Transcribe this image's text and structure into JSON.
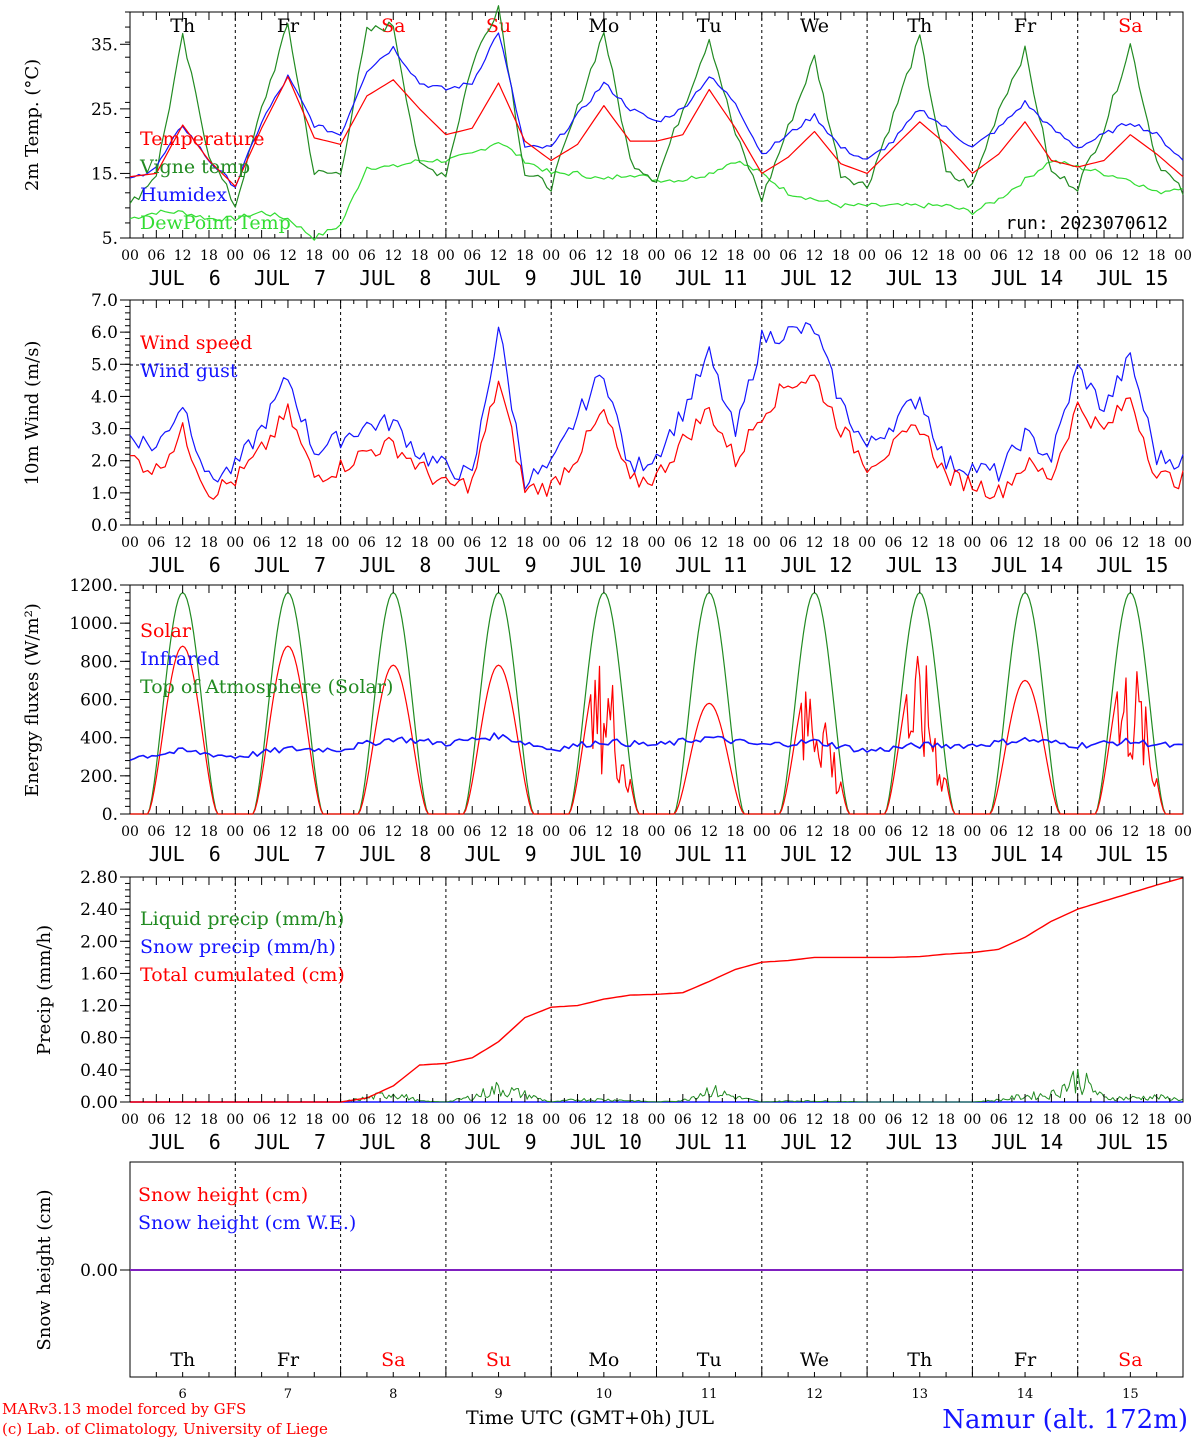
{
  "run": "run: 2023070612",
  "footer": {
    "credit1": "MARv3.13 model forced by GFS",
    "credit2": "(c) Lab. of Climatology, University of Liege",
    "xaxis_title": "Time UTC (GMT+0h) JUL",
    "station": "Namur (alt. 172m)"
  },
  "days": [
    {
      "num": "6",
      "date": "JUL  6",
      "dow": "Th"
    },
    {
      "num": "7",
      "date": "JUL  7",
      "dow": "Fr"
    },
    {
      "num": "8",
      "date": "JUL  8",
      "dow": "Sa"
    },
    {
      "num": "9",
      "date": "JUL  9",
      "dow": "Su"
    },
    {
      "num": "10",
      "date": "JUL 10",
      "dow": "Mo"
    },
    {
      "num": "11",
      "date": "JUL 11",
      "dow": "Tu"
    },
    {
      "num": "12",
      "date": "JUL 12",
      "dow": "We"
    },
    {
      "num": "13",
      "date": "JUL 13",
      "dow": "Th"
    },
    {
      "num": "14",
      "date": "JUL 14",
      "dow": "Fr"
    },
    {
      "num": "15",
      "date": "JUL 15",
      "dow": "Sa"
    }
  ],
  "hour_ticks": [
    "00",
    "06",
    "12",
    "18"
  ],
  "colors": {
    "red": "#ff0000",
    "green": "#228b22",
    "blue": "#1414ff",
    "lime": "#33dd33",
    "weekend": "#ff0000",
    "purple": "#7f1fbf"
  },
  "chart_data": [
    {
      "type": "line",
      "ylabel": "2m Temp. (°C)",
      "ylim": [
        5,
        40
      ],
      "yticks": [
        "5.",
        "15.",
        "25.",
        "35."
      ],
      "x_unit": "hours since JUL 6 00 UTC",
      "series": [
        {
          "name": "Temperature",
          "color": "red",
          "x": [
            0,
            6,
            12,
            18,
            24,
            30,
            36,
            42,
            48,
            54,
            60,
            66,
            72,
            78,
            84,
            90,
            96,
            102,
            108,
            114,
            120,
            126,
            132,
            138,
            144,
            150,
            156,
            162,
            168,
            174,
            180,
            186,
            192,
            198,
            204,
            210,
            216,
            222,
            228,
            234,
            240
          ],
          "values": [
            14.5,
            15,
            22.5,
            17,
            13,
            22,
            30,
            20.5,
            19.5,
            27,
            29.5,
            25,
            21,
            22,
            29,
            20,
            17,
            19.5,
            25.5,
            20,
            20,
            21,
            28,
            22,
            15,
            17.5,
            21.5,
            16.5,
            15,
            19,
            23,
            19.5,
            15,
            18,
            23,
            17,
            16,
            17,
            21,
            18,
            14.5
          ]
        },
        {
          "name": "Vigne temp",
          "color": "green",
          "x": [
            0,
            6,
            12,
            18,
            24,
            30,
            36,
            42,
            48,
            54,
            60,
            66,
            72,
            78,
            84,
            90,
            96,
            102,
            108,
            114,
            120,
            126,
            132,
            138,
            144,
            150,
            156,
            162,
            168,
            174,
            180,
            186,
            192,
            198,
            204,
            210,
            216,
            222,
            228,
            234,
            240
          ],
          "values": [
            10,
            15,
            36,
            18,
            10,
            25,
            38,
            15,
            15,
            37,
            38,
            16,
            15,
            32,
            41,
            15,
            13,
            25,
            37,
            17,
            14,
            25,
            36,
            21,
            11,
            22,
            33,
            15,
            13,
            24,
            36,
            15,
            13,
            25,
            34,
            15,
            13,
            22,
            35,
            17,
            12
          ]
        },
        {
          "name": "Humidex",
          "color": "blue",
          "x": [
            0,
            6,
            12,
            18,
            24,
            30,
            36,
            42,
            48,
            54,
            60,
            66,
            72,
            78,
            84,
            90,
            96,
            102,
            108,
            114,
            120,
            126,
            132,
            138,
            144,
            150,
            156,
            162,
            168,
            174,
            180,
            186,
            192,
            198,
            204,
            210,
            216,
            222,
            228,
            234,
            240
          ],
          "values": [
            14,
            16,
            22.5,
            17,
            13,
            23,
            30,
            22.5,
            21,
            31,
            34.5,
            29,
            28,
            29,
            37,
            19,
            19,
            24,
            29,
            25,
            23,
            25,
            30,
            26,
            18,
            21,
            24,
            19,
            17,
            20,
            25,
            22,
            19,
            22,
            26,
            22,
            19,
            21,
            23,
            21,
            17
          ]
        },
        {
          "name": "DewPoint Temp",
          "color": "lime",
          "x": [
            0,
            6,
            12,
            18,
            24,
            30,
            36,
            42,
            48,
            54,
            60,
            66,
            72,
            78,
            84,
            90,
            96,
            102,
            108,
            114,
            120,
            126,
            132,
            138,
            144,
            150,
            156,
            162,
            168,
            174,
            180,
            186,
            192,
            198,
            204,
            210,
            216,
            222,
            228,
            234,
            240
          ],
          "values": [
            8,
            9,
            9,
            8,
            8,
            9,
            8,
            5,
            7,
            16,
            16,
            17,
            17,
            18,
            20,
            17,
            15,
            15,
            14,
            15,
            14,
            14,
            15,
            17,
            15,
            12,
            11,
            10,
            10,
            10,
            10,
            10,
            9,
            11,
            14,
            17,
            16,
            15,
            14,
            12,
            13
          ]
        }
      ]
    },
    {
      "type": "line",
      "ylabel": "10m Wind (m/s)",
      "ylim": [
        0,
        7
      ],
      "yticks": [
        "0.0",
        "1.0",
        "2.0",
        "3.0",
        "4.0",
        "5.0",
        "6.0",
        "7.0"
      ],
      "series": [
        {
          "name": "Wind speed",
          "color": "red",
          "x": [
            0,
            6,
            12,
            18,
            24,
            30,
            36,
            42,
            48,
            54,
            60,
            66,
            72,
            78,
            84,
            90,
            96,
            102,
            108,
            114,
            120,
            126,
            132,
            138,
            144,
            150,
            156,
            162,
            168,
            174,
            180,
            186,
            192,
            198,
            204,
            210,
            216,
            222,
            228,
            234,
            240
          ],
          "values": [
            2.1,
            1.7,
            2.9,
            1.0,
            1.4,
            2.3,
            3.5,
            1.5,
            1.8,
            2.3,
            2.5,
            1.8,
            1.2,
            1.3,
            4.5,
            1.1,
            1.2,
            2.2,
            3.5,
            1.3,
            1.5,
            2.6,
            3.6,
            2.0,
            3.5,
            4.4,
            4.6,
            3.0,
            1.9,
            2.4,
            3.1,
            1.5,
            1.3,
            1.0,
            1.9,
            1.5,
            3.7,
            2.9,
            4.0,
            1.5,
            1.4
          ]
        },
        {
          "name": "Wind gust",
          "color": "blue",
          "x": [
            0,
            6,
            12,
            18,
            24,
            30,
            36,
            42,
            48,
            54,
            60,
            66,
            72,
            78,
            84,
            90,
            96,
            102,
            108,
            114,
            120,
            126,
            132,
            138,
            144,
            150,
            156,
            162,
            168,
            174,
            180,
            186,
            192,
            198,
            204,
            210,
            216,
            222,
            228,
            234,
            240
          ],
          "values": [
            2.8,
            2.4,
            3.8,
            1.4,
            1.8,
            3.0,
            4.6,
            2.3,
            2.7,
            3.1,
            3.2,
            2.2,
            1.8,
            1.5,
            6.2,
            1.4,
            1.8,
            3.4,
            4.8,
            1.7,
            2.2,
            3.5,
            5.3,
            2.8,
            5.8,
            6.0,
            6.1,
            3.8,
            2.4,
            3.2,
            4.0,
            1.9,
            1.8,
            1.6,
            2.8,
            2.1,
            4.9,
            3.6,
            5.2,
            2.1,
            2.0
          ]
        }
      ]
    },
    {
      "type": "line",
      "ylabel": "Energy fluxes (W/m²)",
      "ylim": [
        0,
        1200
      ],
      "yticks": [
        "0.",
        "200.",
        "400.",
        "600.",
        "800.",
        "1000.",
        "1200."
      ],
      "series": [
        {
          "name": "Solar",
          "color": "red",
          "daily_peak": [
            880,
            880,
            780,
            780,
            840,
            580,
            780,
            840,
            700,
            860
          ]
        },
        {
          "name": "Infrared",
          "color": "blue",
          "x": [
            0,
            12,
            24,
            36,
            48,
            60,
            72,
            84,
            96,
            108,
            120,
            132,
            144,
            156,
            168,
            180,
            192,
            204,
            216,
            228,
            240
          ],
          "values": [
            295,
            330,
            300,
            340,
            340,
            395,
            370,
            410,
            340,
            380,
            360,
            400,
            360,
            380,
            330,
            360,
            360,
            390,
            360,
            380,
            350
          ]
        },
        {
          "name": "Top of Atmosphere (Solar)",
          "color": "green",
          "daily_peak": [
            1160,
            1160,
            1160,
            1160,
            1160,
            1160,
            1160,
            1160,
            1160,
            1160
          ]
        }
      ]
    },
    {
      "type": "line",
      "ylabel": "Precip (mm/h)",
      "ylim": [
        0,
        2.8
      ],
      "yticks": [
        "0.00",
        "0.40",
        "0.80",
        "1.20",
        "1.60",
        "2.00",
        "2.40",
        "2.80"
      ],
      "series": [
        {
          "name": "Liquid precip (mm/h)",
          "color": "green",
          "x": [
            0,
            48,
            54,
            60,
            66,
            72,
            78,
            84,
            90,
            96,
            102,
            108,
            114,
            120,
            126,
            132,
            138,
            144,
            150,
            156,
            162,
            168,
            174,
            180,
            186,
            192,
            198,
            204,
            210,
            216,
            222,
            228,
            234,
            240
          ],
          "values": [
            0,
            0,
            0.08,
            0.18,
            0.02,
            0,
            0.1,
            0.28,
            0.15,
            0,
            0.05,
            0.05,
            0.03,
            0,
            0.03,
            0.25,
            0.1,
            0,
            0.02,
            0.02,
            0.01,
            0,
            0,
            0,
            0,
            0,
            0.04,
            0.12,
            0.15,
            0.5,
            0.08,
            0.08,
            0.1,
            0.05
          ]
        },
        {
          "name": "Snow precip (mm/h)",
          "color": "blue",
          "x": [
            0,
            240
          ],
          "values": [
            0,
            0
          ]
        },
        {
          "name": "Total cumulated (cm)",
          "color": "red",
          "x": [
            0,
            48,
            54,
            60,
            66,
            72,
            78,
            84,
            90,
            96,
            102,
            108,
            114,
            120,
            126,
            132,
            138,
            144,
            150,
            156,
            162,
            168,
            174,
            180,
            186,
            192,
            198,
            204,
            210,
            216,
            222,
            228,
            234,
            240
          ],
          "values": [
            0,
            0,
            0.05,
            0.2,
            0.46,
            0.48,
            0.55,
            0.75,
            1.05,
            1.18,
            1.2,
            1.28,
            1.33,
            1.34,
            1.36,
            1.5,
            1.65,
            1.74,
            1.76,
            1.8,
            1.8,
            1.8,
            1.8,
            1.81,
            1.84,
            1.86,
            1.9,
            2.05,
            2.25,
            2.4,
            2.5,
            2.6,
            2.7,
            2.79
          ]
        }
      ]
    },
    {
      "type": "line",
      "ylabel": "Snow height (cm)",
      "yticks": [
        "0.00"
      ],
      "series": [
        {
          "name": "Snow height (cm)",
          "color": "red",
          "x": [
            0,
            240
          ],
          "values": [
            0,
            0
          ]
        },
        {
          "name": "Snow height (cm W.E.)",
          "color": "blue",
          "x": [
            0,
            240
          ],
          "values": [
            0,
            0
          ]
        }
      ]
    }
  ]
}
